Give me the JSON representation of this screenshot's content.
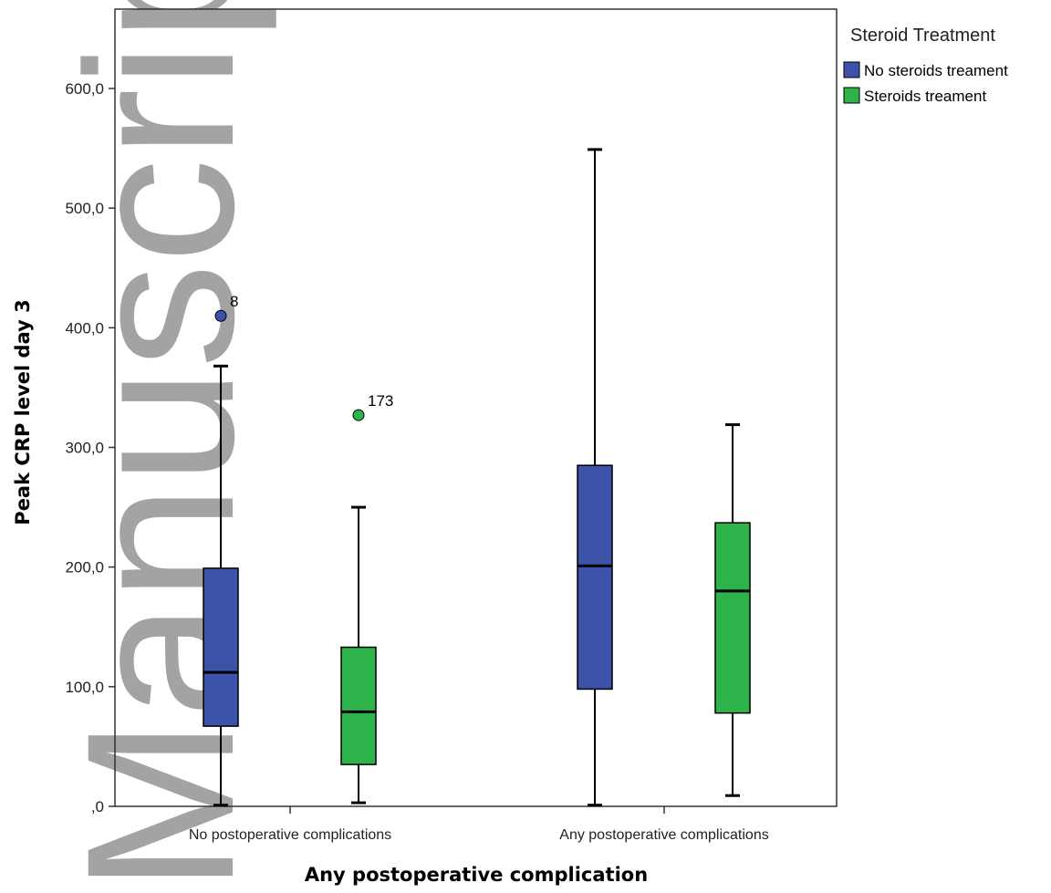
{
  "watermark": "Manuscript",
  "chart_data": {
    "type": "boxplot",
    "xlabel": "Any postoperative complication",
    "ylabel": "Peak CRP level day 3",
    "ylim": [
      0,
      600
    ],
    "yticks": [
      0,
      100,
      200,
      300,
      400,
      500,
      600
    ],
    "ytick_labels": [
      ",0",
      "100,0",
      "200,0",
      "300,0",
      "400,0",
      "500,0",
      "600,0"
    ],
    "categories": [
      "No postoperative complications",
      "Any postoperative complications"
    ],
    "legend": {
      "title": "Steroid Treatment",
      "placement": "top-right outside"
    },
    "series": [
      {
        "name": "No steroids treament",
        "color": "#3b52a8",
        "boxes": [
          {
            "min": 1,
            "q1": 67,
            "median": 112,
            "q3": 199,
            "max": 368,
            "outliers": [
              {
                "value": 410,
                "label": "8"
              }
            ]
          },
          {
            "min": 1,
            "q1": 98,
            "median": 201,
            "q3": 285,
            "max": 549,
            "outliers": []
          }
        ]
      },
      {
        "name": "Steroids treament",
        "color": "#2db34a",
        "boxes": [
          {
            "min": 3,
            "q1": 35,
            "median": 79,
            "q3": 133,
            "max": 250,
            "outliers": [
              {
                "value": 327,
                "label": "173"
              }
            ]
          },
          {
            "min": 9,
            "q1": 78,
            "median": 180,
            "q3": 237,
            "max": 319,
            "outliers": []
          }
        ]
      }
    ]
  }
}
